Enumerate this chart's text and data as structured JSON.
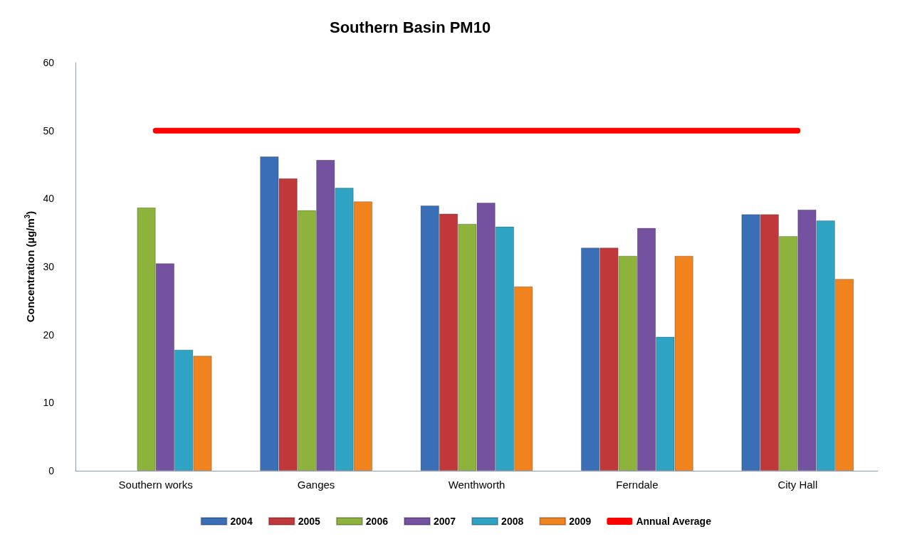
{
  "chart_data": {
    "type": "bar",
    "title": "Southern Basin PM10",
    "ylabel": "Concentration (µg/m$^{3}$)",
    "categories": [
      "Southern works",
      "Ganges",
      "Wenthworth",
      "Ferndale",
      "City Hall"
    ],
    "series": [
      {
        "name": "2004",
        "color": "#3a6fb8",
        "values": [
          null,
          46.2,
          39.0,
          32.8,
          37.7
        ]
      },
      {
        "name": "2005",
        "color": "#c0383a",
        "values": [
          null,
          43.0,
          37.8,
          32.8,
          37.7
        ]
      },
      {
        "name": "2006",
        "color": "#8db33c",
        "values": [
          38.7,
          38.3,
          36.3,
          31.6,
          34.5
        ]
      },
      {
        "name": "2007",
        "color": "#7452a0",
        "values": [
          30.5,
          45.7,
          39.4,
          35.7,
          38.4
        ]
      },
      {
        "name": "2008",
        "color": "#2fa3c3",
        "values": [
          17.8,
          41.6,
          35.9,
          19.7,
          36.8
        ]
      },
      {
        "name": "2009",
        "color": "#f0831e",
        "values": [
          16.9,
          39.6,
          27.1,
          31.6,
          28.2
        ]
      },
      {
        "name": "Annual Average",
        "type": "line",
        "color": "#ff0000",
        "marker": "none",
        "line_style": "solid",
        "values": [
          50,
          50,
          50,
          50,
          50
        ]
      }
    ],
    "ylim": [
      0,
      60
    ],
    "yticks": [
      0,
      10,
      20,
      30,
      40,
      50,
      60
    ],
    "grid": false,
    "legend": "bottom"
  }
}
